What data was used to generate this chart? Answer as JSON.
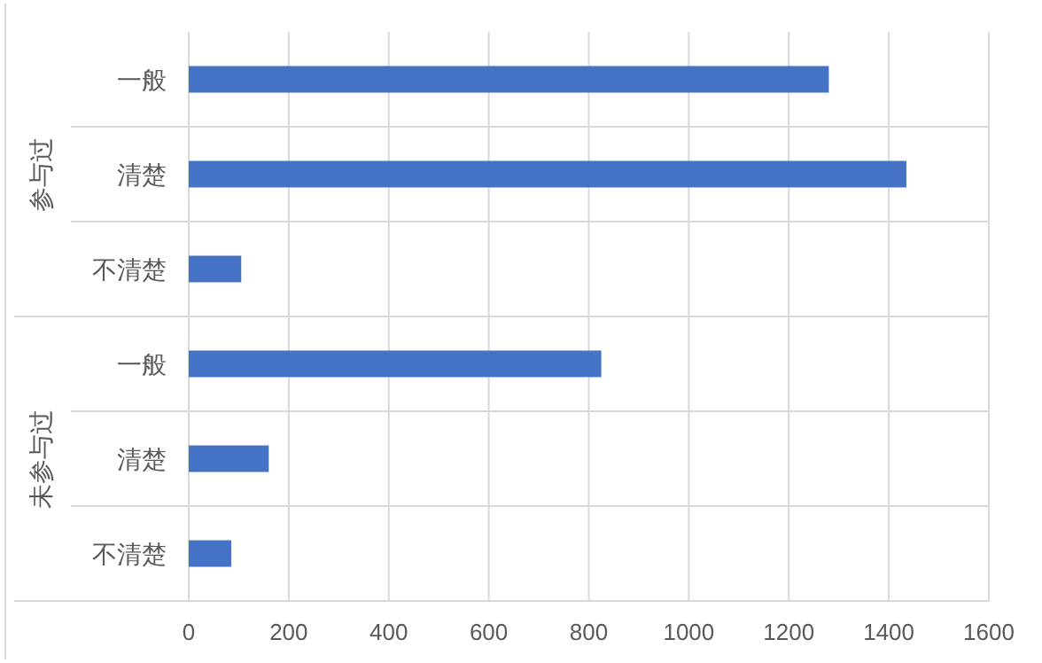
{
  "chart_data": {
    "type": "bar",
    "orientation": "horizontal",
    "categories": [
      "一般",
      "清楚",
      "不清楚",
      "一般",
      "清楚",
      "不清楚"
    ],
    "values": [
      1280,
      1435,
      105,
      825,
      160,
      85
    ],
    "color": "#4472c4",
    "xlim": [
      0,
      1600
    ],
    "xticks": [
      0,
      200,
      400,
      600,
      800,
      1000,
      1200,
      1400,
      1600
    ],
    "grid": "x",
    "annotations": [
      "参与过",
      "未参与过"
    ]
  }
}
